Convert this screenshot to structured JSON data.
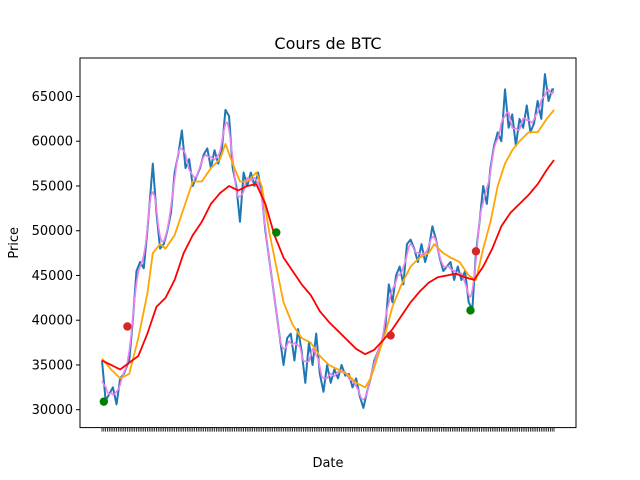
{
  "chart_data": {
    "type": "line",
    "title": "Cours de BTC",
    "xlabel": "Date",
    "ylabel": "Price",
    "ylim": [
      28000,
      69300
    ],
    "yticks": [
      30000,
      35000,
      40000,
      45000,
      50000,
      55000,
      60000,
      65000
    ],
    "ytick_labels": [
      "30000",
      "35000",
      "40000",
      "45000",
      "50000",
      "55000",
      "60000",
      "65000"
    ],
    "x_count": 250,
    "grid": false,
    "colors": {
      "price": "#1f77b4",
      "short_ma": "#ee82ee",
      "mid_ma": "#ffa500",
      "long_ma": "#ff0000",
      "buy_marker": "#008000",
      "sell_marker": "#d62728"
    },
    "price_keypoints": [
      [
        0,
        35500
      ],
      [
        2,
        31000
      ],
      [
        6,
        32500
      ],
      [
        8,
        30600
      ],
      [
        10,
        33500
      ],
      [
        12,
        34000
      ],
      [
        15,
        35500
      ],
      [
        17,
        40000
      ],
      [
        19,
        45500
      ],
      [
        21,
        46500
      ],
      [
        23,
        45800
      ],
      [
        25,
        50000
      ],
      [
        27,
        55000
      ],
      [
        28,
        57500
      ],
      [
        30,
        52000
      ],
      [
        32,
        48000
      ],
      [
        34,
        48500
      ],
      [
        36,
        50000
      ],
      [
        38,
        52000
      ],
      [
        40,
        56500
      ],
      [
        42,
        58500
      ],
      [
        44,
        61200
      ],
      [
        46,
        57000
      ],
      [
        48,
        58000
      ],
      [
        50,
        55000
      ],
      [
        52,
        56000
      ],
      [
        54,
        57000
      ],
      [
        56,
        58500
      ],
      [
        58,
        59200
      ],
      [
        60,
        57000
      ],
      [
        62,
        59000
      ],
      [
        64,
        57500
      ],
      [
        66,
        59000
      ],
      [
        68,
        63500
      ],
      [
        70,
        62800
      ],
      [
        72,
        57000
      ],
      [
        74,
        55000
      ],
      [
        76,
        51000
      ],
      [
        78,
        56500
      ],
      [
        80,
        55000
      ],
      [
        82,
        56500
      ],
      [
        84,
        55000
      ],
      [
        86,
        56500
      ],
      [
        88,
        54000
      ],
      [
        90,
        50000
      ],
      [
        92,
        47000
      ],
      [
        94,
        44000
      ],
      [
        96,
        41000
      ],
      [
        98,
        38000
      ],
      [
        100,
        35000
      ],
      [
        102,
        38000
      ],
      [
        104,
        38500
      ],
      [
        106,
        35500
      ],
      [
        108,
        39000
      ],
      [
        110,
        36500
      ],
      [
        112,
        33000
      ],
      [
        114,
        37500
      ],
      [
        116,
        35000
      ],
      [
        118,
        38500
      ],
      [
        120,
        34000
      ],
      [
        122,
        32000
      ],
      [
        124,
        35000
      ],
      [
        126,
        33000
      ],
      [
        128,
        34500
      ],
      [
        130,
        33500
      ],
      [
        132,
        35000
      ],
      [
        134,
        33800
      ],
      [
        136,
        34000
      ],
      [
        138,
        32500
      ],
      [
        140,
        33500
      ],
      [
        142,
        31500
      ],
      [
        144,
        30200
      ],
      [
        146,
        32000
      ],
      [
        148,
        33500
      ],
      [
        150,
        35500
      ],
      [
        152,
        36500
      ],
      [
        154,
        37500
      ],
      [
        156,
        39000
      ],
      [
        158,
        44000
      ],
      [
        160,
        42000
      ],
      [
        162,
        45000
      ],
      [
        164,
        46000
      ],
      [
        166,
        44000
      ],
      [
        168,
        48500
      ],
      [
        170,
        49000
      ],
      [
        172,
        48000
      ],
      [
        174,
        46500
      ],
      [
        176,
        48500
      ],
      [
        178,
        46500
      ],
      [
        180,
        48000
      ],
      [
        182,
        50500
      ],
      [
        184,
        49000
      ],
      [
        186,
        47000
      ],
      [
        188,
        45500
      ],
      [
        190,
        46000
      ],
      [
        192,
        46500
      ],
      [
        194,
        44500
      ],
      [
        196,
        46000
      ],
      [
        198,
        44500
      ],
      [
        200,
        45500
      ],
      [
        202,
        42000
      ],
      [
        204,
        41200
      ],
      [
        206,
        47500
      ],
      [
        208,
        51000
      ],
      [
        210,
        55000
      ],
      [
        212,
        53000
      ],
      [
        214,
        57000
      ],
      [
        216,
        59500
      ],
      [
        218,
        61000
      ],
      [
        220,
        60000
      ],
      [
        222,
        65800
      ],
      [
        224,
        61500
      ],
      [
        226,
        63000
      ],
      [
        228,
        59500
      ],
      [
        230,
        62500
      ],
      [
        232,
        61500
      ],
      [
        234,
        64000
      ],
      [
        236,
        61000
      ],
      [
        238,
        62000
      ],
      [
        240,
        64500
      ],
      [
        242,
        62500
      ],
      [
        244,
        67500
      ],
      [
        246,
        64500
      ],
      [
        248,
        65800
      ],
      [
        249,
        65800
      ]
    ],
    "long_ma_keypoints": [
      [
        0,
        35500
      ],
      [
        10,
        34500
      ],
      [
        20,
        36000
      ],
      [
        25,
        38500
      ],
      [
        30,
        41500
      ],
      [
        35,
        42500
      ],
      [
        40,
        44500
      ],
      [
        45,
        47500
      ],
      [
        50,
        49500
      ],
      [
        55,
        51000
      ],
      [
        60,
        53000
      ],
      [
        65,
        54200
      ],
      [
        70,
        55000
      ],
      [
        75,
        54500
      ],
      [
        80,
        55000
      ],
      [
        85,
        55200
      ],
      [
        90,
        53000
      ],
      [
        95,
        49500
      ],
      [
        100,
        47000
      ],
      [
        105,
        45500
      ],
      [
        110,
        44000
      ],
      [
        115,
        42800
      ],
      [
        120,
        41000
      ],
      [
        125,
        39800
      ],
      [
        130,
        38800
      ],
      [
        135,
        37800
      ],
      [
        140,
        36800
      ],
      [
        145,
        36200
      ],
      [
        150,
        36700
      ],
      [
        155,
        37800
      ],
      [
        160,
        39000
      ],
      [
        165,
        40500
      ],
      [
        170,
        42000
      ],
      [
        175,
        43200
      ],
      [
        180,
        44200
      ],
      [
        185,
        44800
      ],
      [
        190,
        45000
      ],
      [
        195,
        45200
      ],
      [
        200,
        44800
      ],
      [
        205,
        44500
      ],
      [
        210,
        46000
      ],
      [
        215,
        48000
      ],
      [
        220,
        50500
      ],
      [
        225,
        52000
      ],
      [
        230,
        53000
      ],
      [
        235,
        54000
      ],
      [
        240,
        55200
      ],
      [
        245,
        56800
      ],
      [
        249,
        57900
      ]
    ],
    "mid_ma_keypoints": [
      [
        0,
        35700
      ],
      [
        5,
        34500
      ],
      [
        10,
        33500
      ],
      [
        15,
        34000
      ],
      [
        20,
        38000
      ],
      [
        25,
        43000
      ],
      [
        28,
        47500
      ],
      [
        32,
        48500
      ],
      [
        35,
        48000
      ],
      [
        40,
        49500
      ],
      [
        45,
        52500
      ],
      [
        50,
        55500
      ],
      [
        55,
        55500
      ],
      [
        60,
        57000
      ],
      [
        65,
        58000
      ],
      [
        68,
        59700
      ],
      [
        72,
        57500
      ],
      [
        76,
        55500
      ],
      [
        80,
        55500
      ],
      [
        85,
        56500
      ],
      [
        88,
        55000
      ],
      [
        92,
        50000
      ],
      [
        96,
        46000
      ],
      [
        100,
        42000
      ],
      [
        105,
        39500
      ],
      [
        110,
        38000
      ],
      [
        115,
        37500
      ],
      [
        120,
        36000
      ],
      [
        125,
        35000
      ],
      [
        130,
        34500
      ],
      [
        135,
        34000
      ],
      [
        140,
        33000
      ],
      [
        145,
        32500
      ],
      [
        148,
        33500
      ],
      [
        152,
        36000
      ],
      [
        156,
        38500
      ],
      [
        160,
        41500
      ],
      [
        165,
        44000
      ],
      [
        170,
        46000
      ],
      [
        175,
        47000
      ],
      [
        180,
        47500
      ],
      [
        183,
        48500
      ],
      [
        188,
        47500
      ],
      [
        192,
        47000
      ],
      [
        197,
        46500
      ],
      [
        202,
        45000
      ],
      [
        206,
        44500
      ],
      [
        210,
        48000
      ],
      [
        214,
        51000
      ],
      [
        218,
        55000
      ],
      [
        222,
        57500
      ],
      [
        226,
        59000
      ],
      [
        230,
        60000
      ],
      [
        235,
        61000
      ],
      [
        240,
        61000
      ],
      [
        245,
        62500
      ],
      [
        249,
        63500
      ]
    ],
    "buy_points": [
      {
        "x": 1,
        "y": 30900
      },
      {
        "x": 96,
        "y": 49800
      },
      {
        "x": 203,
        "y": 41100
      }
    ],
    "sell_points": [
      {
        "x": 14,
        "y": 39300
      },
      {
        "x": 159,
        "y": 38300
      },
      {
        "x": 206,
        "y": 47700
      }
    ]
  }
}
